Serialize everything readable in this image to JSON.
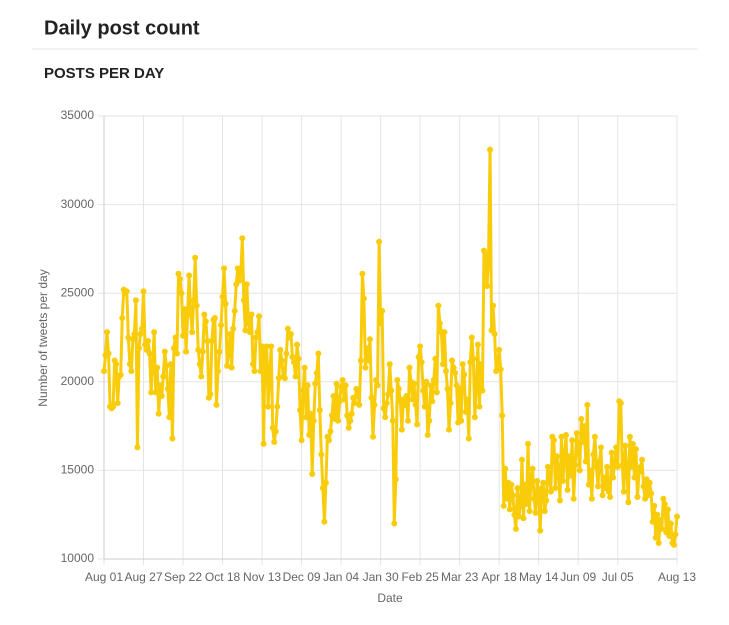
{
  "header": {
    "title": "Daily post count"
  },
  "chart_data": {
    "type": "line",
    "title": "POSTS PER DAY",
    "x_label": "Date",
    "y_label": "Number of tweets per day",
    "color": "#f9cc0b",
    "grid": true,
    "xlim": [
      0,
      377
    ],
    "xticks": [
      {
        "value": 0,
        "label": "Aug 01"
      },
      {
        "value": 26,
        "label": "Aug 27"
      },
      {
        "value": 52,
        "label": "Sep 22"
      },
      {
        "value": 78,
        "label": "Oct 18"
      },
      {
        "value": 104,
        "label": "Nov 13"
      },
      {
        "value": 130,
        "label": "Dec 09"
      },
      {
        "value": 156,
        "label": "Jan 04"
      },
      {
        "value": 182,
        "label": "Jan 30"
      },
      {
        "value": 208,
        "label": "Feb 25"
      },
      {
        "value": 234,
        "label": "Mar 23"
      },
      {
        "value": 260,
        "label": "Apr 18"
      },
      {
        "value": 286,
        "label": "May 14"
      },
      {
        "value": 312,
        "label": "Jun 09"
      },
      {
        "value": 338,
        "label": "Jul 05"
      },
      {
        "value": 377,
        "label": "Aug 13"
      }
    ],
    "ylim": [
      10000,
      35000
    ],
    "yticks": [
      10000,
      15000,
      20000,
      25000,
      30000,
      35000
    ],
    "values": [
      20600,
      21500,
      22800,
      21600,
      18600,
      18500,
      18600,
      21200,
      21000,
      18800,
      20300,
      20400,
      23600,
      25200,
      25000,
      25100,
      22500,
      21000,
      20600,
      22400,
      22700,
      24600,
      16300,
      21900,
      22700,
      23000,
      25100,
      22100,
      21800,
      22300,
      21600,
      19400,
      21000,
      22800,
      19400,
      20800,
      18200,
      19800,
      19200,
      20300,
      21700,
      20900,
      19600,
      18000,
      21000,
      16800,
      21900,
      22500,
      21600,
      26100,
      25800,
      25000,
      22600,
      24100,
      21700,
      23800,
      26000,
      23900,
      22800,
      24600,
      27000,
      24300,
      21800,
      21000,
      20300,
      21700,
      23800,
      23400,
      22300,
      19100,
      19300,
      22300,
      23500,
      23600,
      18700,
      20600,
      21700,
      23200,
      24800,
      26400,
      24400,
      20900,
      21600,
      22700,
      20800,
      23000,
      24000,
      25500,
      26400,
      25700,
      26100,
      28100,
      24600,
      22900,
      25500,
      23300,
      22800,
      23800,
      21000,
      20600,
      22500,
      22800,
      23700,
      20600,
      22000,
      16500,
      21800,
      22000,
      18600,
      20500,
      22000,
      17400,
      16600,
      17200,
      18600,
      20200,
      21800,
      21200,
      20300,
      20200,
      21600,
      23000,
      22500,
      22700,
      21400,
      21100,
      20300,
      22100,
      21300,
      18400,
      16700,
      19500,
      20800,
      18000,
      19800,
      17000,
      18200,
      14800,
      17800,
      19900,
      20500,
      21600,
      18400,
      15900,
      14000,
      12100,
      14300,
      16900,
      16700,
      17200,
      18100,
      19200,
      17900,
      19900,
      17800,
      18900,
      19700,
      20100,
      19000,
      19800,
      18100,
      17400,
      17800,
      18200,
      19100,
      18800,
      19600,
      19400,
      18700,
      21200,
      26100,
      24700,
      20800,
      21900,
      21200,
      22400,
      19100,
      16900,
      18700,
      20100,
      19800,
      27900,
      23300,
      24000,
      18500,
      18000,
      18800,
      19300,
      21000,
      19500,
      17800,
      12000,
      14500,
      20100,
      19600,
      18900,
      17300,
      19000,
      18700,
      19200,
      17800,
      20800,
      20000,
      19000,
      19900,
      18700,
      17600,
      21400,
      22000,
      21100,
      19500,
      18600,
      20000,
      17000,
      17800,
      19800,
      18900,
      20100,
      21300,
      19400,
      24300,
      23300,
      22800,
      21000,
      22800,
      20600,
      19600,
      17300,
      18800,
      21200,
      20800,
      20500,
      19800,
      17700,
      19600,
      17800,
      21000,
      20400,
      18300,
      19000,
      16800,
      21100,
      22500,
      21300,
      18000,
      19700,
      22100,
      18600,
      21000,
      19500,
      27400,
      27200,
      25400,
      27000,
      33100,
      22900,
      24300,
      22700,
      20600,
      21000,
      21800,
      20700,
      18100,
      13000,
      15100,
      13400,
      14300,
      12800,
      14200,
      13600,
      12500,
      11700,
      14000,
      12400,
      13000,
      15600,
      12300,
      14200,
      13100,
      16500,
      12700,
      14700,
      15100,
      13400,
      12600,
      14400,
      13700,
      11600,
      14000,
      14300,
      12700,
      13300,
      15200,
      14600,
      13800,
      16900,
      16700,
      14000,
      15800,
      15000,
      13300,
      16900,
      14400,
      15800,
      17000,
      13900,
      15800,
      14700,
      16700,
      13400,
      15300,
      17100,
      16200,
      15000,
      17900,
      16600,
      17500,
      15500,
      18700,
      14200,
      15000,
      13400,
      15900,
      16900,
      15200,
      14100,
      15500,
      16300,
      13600,
      14600,
      14000,
      15200,
      13800,
      13500,
      16000,
      14600,
      15500,
      16300,
      15200,
      18900,
      18800,
      15300,
      13800,
      16400,
      15000,
      13200,
      16900,
      15200,
      16500,
      14600,
      16200,
      13500,
      14900,
      15200,
      15600,
      14100,
      13400,
      14500,
      13600,
      14300,
      13700,
      12100,
      13000,
      11200,
      12500,
      10900,
      12200,
      11700,
      13400,
      13100,
      11500,
      12800,
      11300,
      12000,
      10900,
      10800,
      11400,
      12400
    ]
  }
}
